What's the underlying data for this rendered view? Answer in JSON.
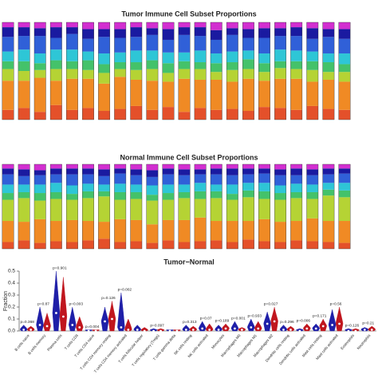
{
  "chart_data": [
    {
      "type": "stacked_bar",
      "title": "Tumor Immune Cell Subset Proportions",
      "ylim": [
        0,
        1
      ],
      "series": [
        {
          "color": "#e4502a",
          "values": [
            0.1,
            0.12,
            0.08,
            0.15,
            0.1,
            0.12,
            0.09,
            0.11,
            0.14,
            0.1,
            0.13,
            0.08,
            0.12,
            0.1,
            0.11,
            0.09,
            0.13,
            0.12,
            0.1,
            0.14,
            0.11,
            0.1
          ]
        },
        {
          "color": "#f08a24",
          "values": [
            0.3,
            0.28,
            0.35,
            0.25,
            0.32,
            0.3,
            0.28,
            0.33,
            0.27,
            0.3,
            0.26,
            0.34,
            0.29,
            0.31,
            0.28,
            0.33,
            0.27,
            0.3,
            0.32,
            0.25,
            0.3,
            0.29
          ]
        },
        {
          "color": "#b5d334",
          "values": [
            0.12,
            0.1,
            0.08,
            0.12,
            0.1,
            0.09,
            0.11,
            0.08,
            0.1,
            0.12,
            0.09,
            0.1,
            0.11,
            0.08,
            0.12,
            0.1,
            0.09,
            0.11,
            0.1,
            0.12,
            0.08,
            0.1
          ]
        },
        {
          "color": "#44c26a",
          "values": [
            0.08,
            0.1,
            0.07,
            0.09,
            0.08,
            0.1,
            0.09,
            0.07,
            0.08,
            0.09,
            0.1,
            0.08,
            0.07,
            0.09,
            0.08,
            0.1,
            0.09,
            0.07,
            0.08,
            0.09,
            0.1,
            0.08
          ]
        },
        {
          "color": "#2ec6d6",
          "values": [
            0.1,
            0.12,
            0.1,
            0.11,
            0.12,
            0.09,
            0.11,
            0.1,
            0.12,
            0.1,
            0.11,
            0.09,
            0.12,
            0.1,
            0.11,
            0.09,
            0.1,
            0.12,
            0.11,
            0.1,
            0.09,
            0.11
          ]
        },
        {
          "color": "#3060d8",
          "values": [
            0.15,
            0.14,
            0.18,
            0.12,
            0.16,
            0.13,
            0.17,
            0.15,
            0.14,
            0.16,
            0.13,
            0.18,
            0.15,
            0.14,
            0.17,
            0.13,
            0.16,
            0.14,
            0.15,
            0.13,
            0.17,
            0.15
          ]
        },
        {
          "color": "#1a1aa0",
          "values": [
            0.1,
            0.09,
            0.08,
            0.11,
            0.07,
            0.1,
            0.08,
            0.09,
            0.1,
            0.07,
            0.11,
            0.08,
            0.09,
            0.1,
            0.07,
            0.09,
            0.1,
            0.08,
            0.09,
            0.11,
            0.08,
            0.1
          ]
        },
        {
          "color": "#d22fd0",
          "values": [
            0.05,
            0.05,
            0.06,
            0.05,
            0.05,
            0.07,
            0.07,
            0.07,
            0.05,
            0.06,
            0.07,
            0.05,
            0.05,
            0.08,
            0.06,
            0.07,
            0.06,
            0.06,
            0.05,
            0.06,
            0.07,
            0.07
          ]
        }
      ]
    },
    {
      "type": "stacked_bar",
      "title": "Normal Immune Cell Subset Proportions",
      "ylim": [
        0,
        1
      ],
      "series": [
        {
          "color": "#e4502a",
          "values": [
            0.08,
            0.1,
            0.07,
            0.09,
            0.08,
            0.1,
            0.12,
            0.08,
            0.09,
            0.07,
            0.1,
            0.08,
            0.09,
            0.1,
            0.08,
            0.11,
            0.09,
            0.08,
            0.1,
            0.09,
            0.08,
            0.07
          ]
        },
        {
          "color": "#f08a24",
          "values": [
            0.25,
            0.22,
            0.28,
            0.24,
            0.26,
            0.23,
            0.2,
            0.27,
            0.25,
            0.22,
            0.24,
            0.26,
            0.28,
            0.23,
            0.25,
            0.22,
            0.26,
            0.24,
            0.23,
            0.27,
            0.25,
            0.26
          ]
        },
        {
          "color": "#b5d334",
          "values": [
            0.25,
            0.28,
            0.22,
            0.26,
            0.24,
            0.27,
            0.3,
            0.23,
            0.25,
            0.28,
            0.24,
            0.26,
            0.22,
            0.27,
            0.25,
            0.28,
            0.24,
            0.26,
            0.27,
            0.23,
            0.3,
            0.28
          ]
        },
        {
          "color": "#44c26a",
          "values": [
            0.08,
            0.07,
            0.09,
            0.08,
            0.07,
            0.08,
            0.06,
            0.09,
            0.08,
            0.07,
            0.08,
            0.07,
            0.09,
            0.08,
            0.07,
            0.08,
            0.09,
            0.08,
            0.07,
            0.08,
            0.07,
            0.08
          ]
        },
        {
          "color": "#2ec6d6",
          "values": [
            0.1,
            0.09,
            0.1,
            0.11,
            0.1,
            0.09,
            0.08,
            0.1,
            0.09,
            0.11,
            0.1,
            0.09,
            0.1,
            0.08,
            0.11,
            0.09,
            0.1,
            0.09,
            0.1,
            0.09,
            0.08,
            0.09
          ]
        },
        {
          "color": "#3060d8",
          "values": [
            0.12,
            0.1,
            0.11,
            0.1,
            0.13,
            0.11,
            0.1,
            0.12,
            0.11,
            0.1,
            0.12,
            0.11,
            0.1,
            0.12,
            0.11,
            0.1,
            0.11,
            0.12,
            0.1,
            0.11,
            0.1,
            0.11
          ]
        },
        {
          "color": "#1a1aa0",
          "values": [
            0.07,
            0.08,
            0.06,
            0.07,
            0.07,
            0.07,
            0.08,
            0.06,
            0.07,
            0.08,
            0.07,
            0.07,
            0.06,
            0.07,
            0.08,
            0.07,
            0.06,
            0.07,
            0.08,
            0.07,
            0.07,
            0.06
          ]
        },
        {
          "color": "#d22fd0",
          "values": [
            0.05,
            0.06,
            0.07,
            0.05,
            0.05,
            0.05,
            0.06,
            0.05,
            0.06,
            0.07,
            0.05,
            0.06,
            0.06,
            0.05,
            0.05,
            0.05,
            0.05,
            0.06,
            0.05,
            0.06,
            0.05,
            0.05
          ]
        }
      ]
    },
    {
      "type": "violin",
      "title": "Tumor−Normal",
      "ylabel": "Fraction",
      "ylim": [
        0,
        0.5
      ],
      "yticks": [
        {
          "value": 0,
          "label": "0.0"
        },
        0.1,
        0.2,
        0.3,
        0.4,
        0.5
      ],
      "categories": [
        "B cells naive",
        "B cells memory",
        "Plasma cells",
        "T cells CD8",
        "T cells CD4 naive",
        "T cells CD4 memory resting",
        "T cells CD4 memory activated",
        "T cells follicular helper",
        "T cells regulatory (Tregs)",
        "T cells gamma delta",
        "NK cells resting",
        "NK cells activated",
        "Monocytes",
        "Macrophages M0",
        "Macrophages M1",
        "Macrophages M2",
        "Dendritic cells resting",
        "Dendritic cells activated",
        "Mast cells resting",
        "Mast cells activated",
        "Eosinophils",
        "Neutrophils"
      ],
      "annotations": [
        "p=0.368",
        "p=0.87",
        "p=0.901",
        "p=0.003",
        "p=0.004",
        "p=0.126",
        "p=0.002",
        null,
        "p=0.097",
        null,
        "p=0.313",
        "p=0.07",
        "p=0.189",
        "p=0.001",
        "p=0.933",
        "p=0.027",
        "p=0.296",
        "p=0.006",
        "p=0.171",
        "p=0.56",
        "p=0.126",
        "p=0.21"
      ],
      "series": [
        {
          "color": "#1f1fa8",
          "values": [
            0.05,
            0.2,
            0.5,
            0.2,
            0.01,
            0.2,
            0.32,
            0.05,
            0.02,
            0.01,
            0.05,
            0.08,
            0.05,
            0.08,
            0.1,
            0.16,
            0.05,
            0.02,
            0.06,
            0.18,
            0.02,
            0.03
          ],
          "medians": [
            0.01,
            0.05,
            0.15,
            0.05,
            0.0,
            0.08,
            0.03,
            0.01,
            0.0,
            0.0,
            0.01,
            0.02,
            0.01,
            0.02,
            0.03,
            0.06,
            0.01,
            0.0,
            0.02,
            0.05,
            0.0,
            0.01
          ]
        },
        {
          "color": "#c0161e",
          "values": [
            0.04,
            0.15,
            0.45,
            0.12,
            0.01,
            0.25,
            0.1,
            0.03,
            0.02,
            0.01,
            0.04,
            0.06,
            0.06,
            0.03,
            0.08,
            0.2,
            0.04,
            0.06,
            0.1,
            0.2,
            0.02,
            0.04
          ],
          "medians": [
            0.01,
            0.04,
            0.12,
            0.03,
            0.0,
            0.1,
            0.01,
            0.0,
            0.0,
            0.0,
            0.01,
            0.01,
            0.02,
            0.01,
            0.02,
            0.08,
            0.01,
            0.02,
            0.04,
            0.06,
            0.0,
            0.01
          ]
        }
      ]
    }
  ]
}
